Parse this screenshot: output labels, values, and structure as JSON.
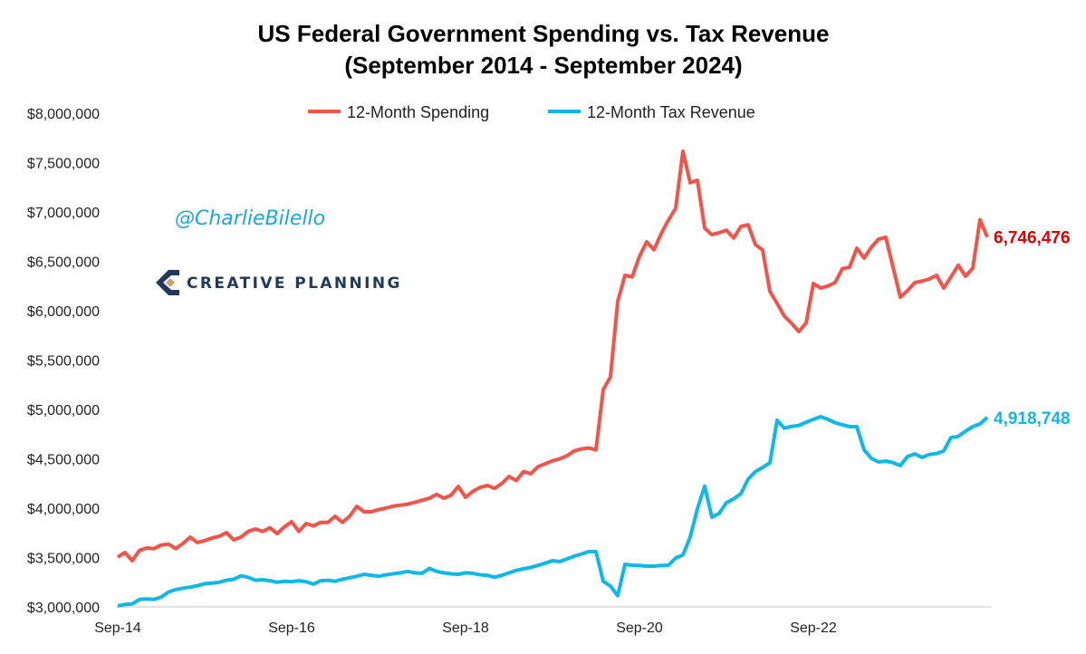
{
  "chart_data": {
    "type": "line",
    "title": "US Federal Government Spending vs. Tax Revenue",
    "subtitle": "(September 2014 - September 2024)",
    "xlabel": "",
    "ylabel": "",
    "x_start": "Sep-14",
    "x_frequency": "monthly",
    "x_tick_labels": [
      "Sep-14",
      "Sep-16",
      "Sep-18",
      "Sep-20",
      "Sep-22"
    ],
    "x_tick_indexes": [
      0,
      24,
      48,
      72,
      96
    ],
    "y_unit": "thousands of USD",
    "ylim": [
      3000000,
      8000000
    ],
    "y_tick_labels": [
      "$3,000,000",
      "$3,500,000",
      "$4,000,000",
      "$4,500,000",
      "$5,000,000",
      "$5,500,000",
      "$6,000,000",
      "$6,500,000",
      "$7,000,000",
      "$7,500,000",
      "$8,000,000"
    ],
    "y_tick_values": [
      3000000,
      3500000,
      4000000,
      4500000,
      5000000,
      5500000,
      6000000,
      6500000,
      7000000,
      7500000,
      8000000
    ],
    "grid": false,
    "legend_position": "top-center",
    "series": [
      {
        "name": "12-Month Spending",
        "color": "#f4534a",
        "end_label": "6,746,476",
        "end_label_color": "#e00000",
        "values": [
          3505,
          3550,
          3468,
          3572,
          3596,
          3590,
          3627,
          3636,
          3590,
          3642,
          3706,
          3651,
          3672,
          3697,
          3715,
          3752,
          3679,
          3706,
          3764,
          3789,
          3764,
          3801,
          3743,
          3810,
          3862,
          3764,
          3844,
          3820,
          3856,
          3856,
          3917,
          3856,
          3917,
          4018,
          3963,
          3963,
          3985,
          4000,
          4020,
          4030,
          4040,
          4060,
          4080,
          4100,
          4140,
          4101,
          4131,
          4220,
          4110,
          4170,
          4210,
          4230,
          4200,
          4250,
          4320,
          4280,
          4370,
          4350,
          4420,
          4450,
          4480,
          4500,
          4530,
          4580,
          4600,
          4610,
          4590,
          5200,
          5330,
          6094,
          6358,
          6342,
          6550,
          6697,
          6617,
          6780,
          6917,
          7037,
          7615,
          7296,
          7321,
          6837,
          6770,
          6790,
          6815,
          6736,
          6853,
          6871,
          6670,
          6615,
          6195,
          6073,
          5945,
          5871,
          5789,
          5874,
          6275,
          6229,
          6250,
          6284,
          6425,
          6440,
          6633,
          6532,
          6642,
          6725,
          6743,
          6440,
          6137,
          6204,
          6284,
          6300,
          6321,
          6358,
          6229,
          6342,
          6461,
          6349,
          6431,
          6920,
          6746
        ]
      },
      {
        "name": "12-Month Tax Revenue",
        "color": "#0fb8e8",
        "end_label": "4,918,748",
        "end_label_color": "#13b4e6",
        "values": [
          3010,
          3025,
          3030,
          3075,
          3080,
          3075,
          3100,
          3150,
          3175,
          3190,
          3200,
          3215,
          3235,
          3240,
          3250,
          3270,
          3280,
          3315,
          3300,
          3270,
          3275,
          3265,
          3250,
          3260,
          3255,
          3265,
          3255,
          3230,
          3265,
          3270,
          3260,
          3280,
          3295,
          3310,
          3330,
          3320,
          3310,
          3325,
          3335,
          3345,
          3360,
          3345,
          3340,
          3390,
          3360,
          3345,
          3335,
          3330,
          3345,
          3340,
          3325,
          3320,
          3300,
          3320,
          3345,
          3370,
          3385,
          3400,
          3420,
          3443,
          3468,
          3459,
          3486,
          3514,
          3535,
          3560,
          3560,
          3260,
          3211,
          3113,
          3431,
          3422,
          3419,
          3413,
          3413,
          3419,
          3422,
          3495,
          3526,
          3706,
          3994,
          4223,
          3908,
          3948,
          4055,
          4094,
          4147,
          4294,
          4370,
          4413,
          4459,
          4890,
          4810,
          4828,
          4838,
          4871,
          4899,
          4927,
          4899,
          4865,
          4844,
          4826,
          4826,
          4590,
          4505,
          4468,
          4477,
          4461,
          4431,
          4523,
          4550,
          4514,
          4544,
          4553,
          4581,
          4716,
          4727,
          4780,
          4826,
          4853,
          4919
        ]
      }
    ]
  },
  "watermark": {
    "handle": "@CharlieBilello",
    "logo_text": "CREATIVE PLANNING",
    "logo_color": "#1f3a5a",
    "logo_accent": "#c9a46a"
  }
}
